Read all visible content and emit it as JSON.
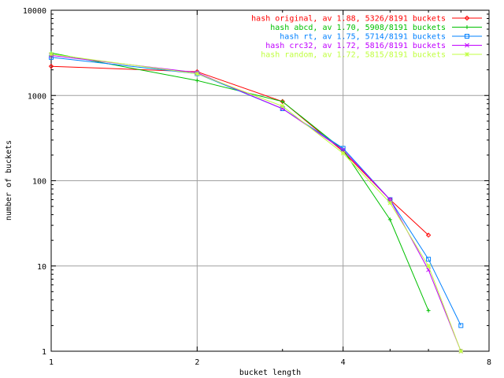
{
  "chart_data": {
    "type": "line",
    "title": "",
    "xlabel": "bucket length",
    "ylabel": "number of buckets",
    "xscale": "log2",
    "yscale": "log10",
    "xlim": [
      1,
      8
    ],
    "ylim": [
      1,
      10000
    ],
    "xticks": [
      1,
      2,
      4,
      8
    ],
    "xtick_labels": [
      "1",
      "2",
      "4",
      "8"
    ],
    "yticks": [
      1,
      10,
      100,
      1000,
      10000
    ],
    "ytick_labels": [
      "1",
      "10",
      "100",
      "1000",
      "10000"
    ],
    "grid": true,
    "legend_position": "top-right",
    "series": [
      {
        "name": "hash original, av 1.88, 5326/8191 buckets",
        "color": "#ff0000",
        "marker": "diamond",
        "x": [
          1,
          2,
          3,
          4,
          5,
          6
        ],
        "y": [
          2200,
          1900,
          850,
          220,
          60,
          23
        ]
      },
      {
        "name": "hash abcd, av 1.70, 5908/8191 buckets",
        "color": "#00c000",
        "marker": "plus",
        "x": [
          1,
          2,
          3,
          4,
          5,
          6
        ],
        "y": [
          3150,
          1500,
          850,
          230,
          35,
          3
        ]
      },
      {
        "name": "hash rt, av 1.75, 5714/8191 buckets",
        "color": "#0080ff",
        "marker": "square",
        "x": [
          1,
          2,
          3,
          4,
          5,
          6,
          7
        ],
        "y": [
          2800,
          1800,
          700,
          240,
          60,
          12,
          2
        ]
      },
      {
        "name": "hash crc32, av 1.72, 5816/8191 buckets",
        "color": "#c000ff",
        "marker": "x",
        "x": [
          1,
          2,
          3,
          4,
          5,
          6,
          7
        ],
        "y": [
          2950,
          1850,
          700,
          230,
          60,
          9,
          1
        ]
      },
      {
        "name": "hash random, av 1.72, 5815/8191 buckets",
        "color": "#c0ff40",
        "marker": "star",
        "x": [
          1,
          2,
          3,
          4,
          5,
          6,
          7
        ],
        "y": [
          3050,
          1800,
          750,
          210,
          55,
          10,
          1
        ]
      }
    ]
  }
}
